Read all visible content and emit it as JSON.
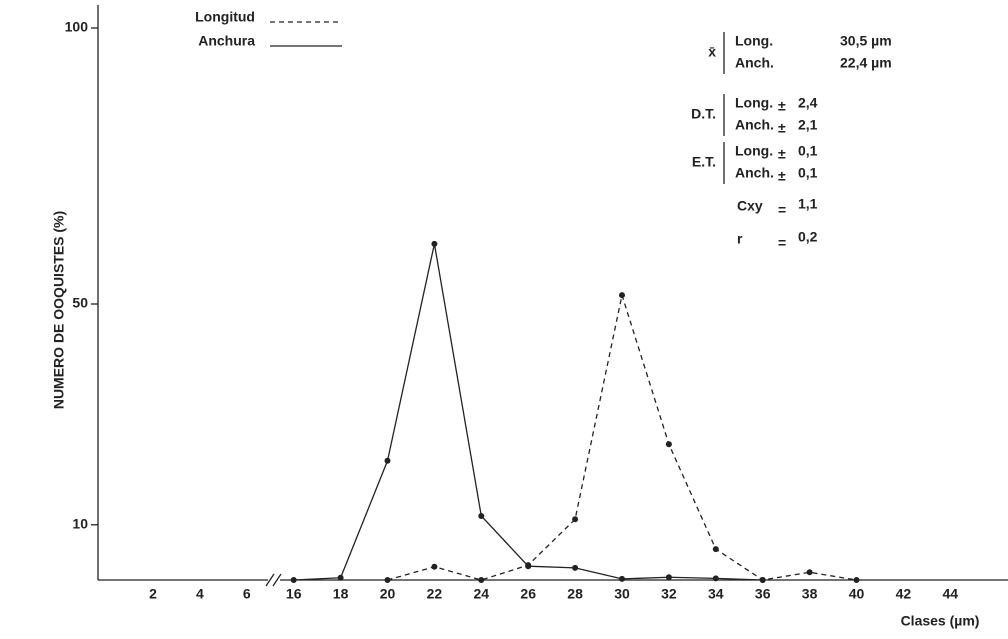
{
  "chart_data": {
    "type": "line",
    "x_label": "Clases (µm)",
    "y_label": "NUMERO DE OOQUISTES (%)",
    "categories": [
      2,
      4,
      6,
      16,
      18,
      20,
      22,
      24,
      26,
      28,
      30,
      32,
      34,
      36,
      38,
      40,
      42,
      44
    ],
    "series": [
      {
        "name": "Longitud",
        "color": "#222222",
        "dash": true,
        "values": [
          null,
          null,
          null,
          null,
          null,
          0,
          2.4,
          0,
          2.7,
          11,
          51.6,
          24.6,
          5.6,
          0,
          1.4,
          0,
          null,
          null
        ]
      },
      {
        "name": "Anchura",
        "color": "#222222",
        "dash": false,
        "values": [
          null,
          null,
          null,
          0,
          0.4,
          21.6,
          60.9,
          11.6,
          2.5,
          2.2,
          0.2,
          0.5,
          0.3,
          0,
          null,
          null,
          null,
          null
        ]
      }
    ],
    "ylim": [
      0,
      100
    ],
    "yticks": [
      10,
      50,
      100
    ],
    "stats": [
      {
        "label": "x̄",
        "rows": [
          {
            "name": "Long.",
            "sign": "",
            "value": "30,5 µm"
          },
          {
            "name": "Anch.",
            "sign": "",
            "value": "22,4 µm"
          }
        ]
      },
      {
        "label": "D.T.",
        "rows": [
          {
            "name": "Long.",
            "sign": "±",
            "value": "2,4"
          },
          {
            "name": "Anch.",
            "sign": "±",
            "value": "2,1"
          }
        ]
      },
      {
        "label": "E.T.",
        "rows": [
          {
            "name": "Long.",
            "sign": "±",
            "value": "0,1"
          },
          {
            "name": "Anch.",
            "sign": "±",
            "value": "0,1"
          }
        ]
      },
      {
        "label": "Cxy",
        "sign": "=",
        "value": "1,1"
      },
      {
        "label": "r",
        "sign": "=",
        "value": "0,2"
      }
    ]
  }
}
